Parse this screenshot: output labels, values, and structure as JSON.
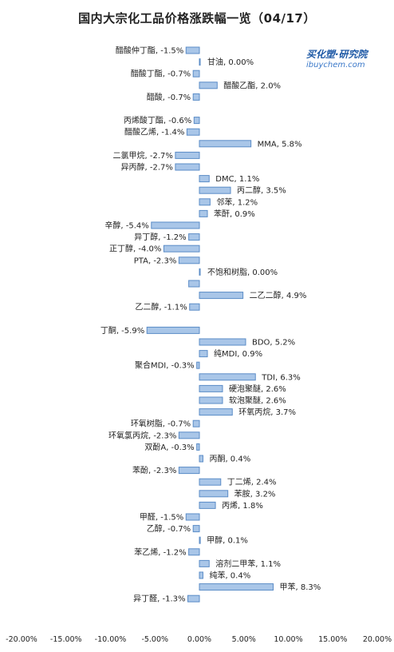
{
  "chart_data": {
    "type": "bar",
    "orientation": "horizontal",
    "title": "国内大宗化工品价格涨跌幅一览（04/17）",
    "xlim": [
      -20,
      20
    ],
    "x_ticks": [
      -20,
      -15,
      -10,
      -5,
      0,
      5,
      10,
      15,
      20
    ],
    "x_tick_labels": [
      "-20.00%",
      "-15.00%",
      "-10.00%",
      "-5.00%",
      "0.00%",
      "5.00%",
      "10.00%",
      "15.00%",
      "20.00%"
    ],
    "grid": false,
    "legend": "none",
    "bar_color": "#a9c6e8",
    "bar_edge_color": "#5b8cc7",
    "categories": [
      {
        "label": "醋酸仲丁酯, -1.5%",
        "value": -1.5
      },
      {
        "label": "甘油, 0.00%",
        "value": 0.0
      },
      {
        "label": "醋酸丁酯, -0.7%",
        "value": -0.7
      },
      {
        "label": "醋酸乙酯, 2.0%",
        "value": 2.0
      },
      {
        "label": "醋酸, -0.7%",
        "value": -0.7
      },
      {
        "label": "",
        "value": null
      },
      {
        "label": "丙烯酸丁酯, -0.6%",
        "value": -0.6
      },
      {
        "label": "醋酸乙烯, -1.4%",
        "value": -1.4
      },
      {
        "label": "MMA, 5.8%",
        "value": 5.8
      },
      {
        "label": "二氯甲烷, -2.7%",
        "value": -2.7
      },
      {
        "label": "异丙醇, -2.7%",
        "value": -2.7
      },
      {
        "label": "DMC, 1.1%",
        "value": 1.1
      },
      {
        "label": "丙二醇, 3.5%",
        "value": 3.5
      },
      {
        "label": "邻苯, 1.2%",
        "value": 1.2
      },
      {
        "label": "苯酐, 0.9%",
        "value": 0.9
      },
      {
        "label": "辛醇, -5.4%",
        "value": -5.4
      },
      {
        "label": "异丁醇, -1.2%",
        "value": -1.2
      },
      {
        "label": "正丁醇, -4.0%",
        "value": -4.0
      },
      {
        "label": "PTA, -2.3%",
        "value": -2.3
      },
      {
        "label": "不饱和树脂, 0.00%",
        "value": 0.0
      },
      {
        "label": "",
        "value": -1.2
      },
      {
        "label": "二乙二醇, 4.9%",
        "value": 4.9
      },
      {
        "label": "乙二醇, -1.1%",
        "value": -1.1
      },
      {
        "label": "",
        "value": null
      },
      {
        "label": "丁酮, -5.9%",
        "value": -5.9
      },
      {
        "label": "BDO, 5.2%",
        "value": 5.2
      },
      {
        "label": "纯MDI, 0.9%",
        "value": 0.9
      },
      {
        "label": "聚合MDI, -0.3%",
        "value": -0.3
      },
      {
        "label": "TDI, 6.3%",
        "value": 6.3
      },
      {
        "label": "硬泡聚醚, 2.6%",
        "value": 2.6
      },
      {
        "label": "软泡聚醚, 2.6%",
        "value": 2.6
      },
      {
        "label": "环氧丙烷, 3.7%",
        "value": 3.7
      },
      {
        "label": "环氧树脂, -0.7%",
        "value": -0.7
      },
      {
        "label": "环氧氯丙烷, -2.3%",
        "value": -2.3
      },
      {
        "label": "双酚A, -0.3%",
        "value": -0.3
      },
      {
        "label": "丙酮, 0.4%",
        "value": 0.4
      },
      {
        "label": "苯酚, -2.3%",
        "value": -2.3
      },
      {
        "label": "丁二烯, 2.4%",
        "value": 2.4
      },
      {
        "label": "苯胺, 3.2%",
        "value": 3.2
      },
      {
        "label": "丙烯, 1.8%",
        "value": 1.8
      },
      {
        "label": "甲醛, -1.5%",
        "value": -1.5
      },
      {
        "label": "乙醇, -0.7%",
        "value": -0.7
      },
      {
        "label": "甲醇, 0.1%",
        "value": 0.1
      },
      {
        "label": "苯乙烯, -1.2%",
        "value": -1.2
      },
      {
        "label": "溶剂二甲苯, 1.1%",
        "value": 1.1
      },
      {
        "label": "纯苯, 0.4%",
        "value": 0.4
      },
      {
        "label": "甲苯, 8.3%",
        "value": 8.3
      },
      {
        "label": "异丁醛, -1.3%",
        "value": -1.3
      }
    ]
  },
  "brand": {
    "name": "买化塑·研究院",
    "url": "ibuychem.com"
  }
}
